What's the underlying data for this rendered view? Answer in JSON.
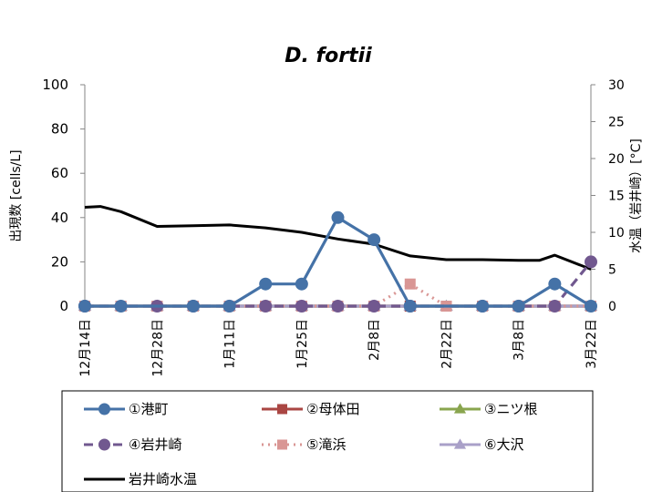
{
  "chart_data": {
    "type": "line",
    "title": "D. fortii",
    "ylabel": "出現数 [cells/L]",
    "y2label": "水温（岩井崎）[°C]",
    "ylim": [
      0,
      100
    ],
    "y2lim": [
      0,
      30
    ],
    "yticks": [
      "0",
      "20",
      "40",
      "60",
      "80",
      "100"
    ],
    "y2ticks": [
      "0",
      "5",
      "10",
      "15",
      "20",
      "25",
      "30"
    ],
    "x_labels": [
      "12月14日",
      "12月28日",
      "1月11日",
      "1月25日",
      "2月8日",
      "2月22日",
      "3月8日",
      "3月22日"
    ],
    "x_domain": [
      0,
      98
    ],
    "x_label_days": [
      0,
      14,
      28,
      42,
      56,
      70,
      84,
      98
    ],
    "legend_position": "bottom",
    "series": [
      {
        "name": "①港町",
        "color": "#4572A7",
        "dash": "solid",
        "marker": "circle",
        "axis": "left",
        "x": [
          0,
          7,
          21,
          28,
          35,
          42,
          49,
          56,
          63,
          77,
          84,
          91,
          98
        ],
        "values": [
          0,
          0,
          0,
          0,
          10,
          10,
          40,
          30,
          0,
          0,
          0,
          10,
          0
        ]
      },
      {
        "name": "②母体田",
        "color": "#AA4643",
        "dash": "solid",
        "marker": "square",
        "axis": "left",
        "x": [
          0,
          7,
          14,
          21,
          28,
          35,
          42,
          49,
          56,
          63,
          70,
          77,
          84,
          91,
          98
        ],
        "values": [
          0,
          0,
          0,
          0,
          0,
          0,
          0,
          0,
          0,
          0,
          0,
          0,
          0,
          0,
          0
        ]
      },
      {
        "name": "③ニツ根",
        "color": "#89A54E",
        "dash": "solid",
        "marker": "triangle",
        "axis": "left",
        "x": [
          0,
          7,
          14,
          21,
          28,
          35,
          42,
          49,
          56,
          63,
          70,
          77,
          84,
          91,
          98
        ],
        "values": [
          0,
          0,
          0,
          0,
          0,
          0,
          0,
          0,
          0,
          0,
          0,
          0,
          0,
          0,
          0
        ]
      },
      {
        "name": "④岩井崎",
        "color": "#71588F",
        "dash": "dashed",
        "marker": "circle",
        "axis": "left",
        "x": [
          0,
          14,
          21,
          28,
          35,
          42,
          49,
          56,
          63,
          77,
          84,
          91,
          98
        ],
        "values": [
          0,
          0,
          0,
          0,
          0,
          0,
          0,
          0,
          0,
          0,
          0,
          0,
          20
        ]
      },
      {
        "name": "⑤滝浜",
        "color": "#D99694",
        "dash": "dotted",
        "marker": "square",
        "axis": "left",
        "x": [
          0,
          7,
          14,
          21,
          28,
          35,
          42,
          49,
          56,
          63,
          70,
          77,
          84,
          91,
          98
        ],
        "values": [
          0,
          0,
          0,
          0,
          0,
          0,
          0,
          0,
          0,
          10,
          0,
          0,
          0,
          0,
          0
        ]
      },
      {
        "name": "⑥大沢",
        "color": "#A9A0C8",
        "dash": "solid",
        "marker": "triangle",
        "axis": "left",
        "x": [
          0,
          7,
          14,
          21,
          28,
          35,
          42,
          49,
          56,
          63,
          70,
          77,
          84,
          91,
          98
        ],
        "values": [
          0,
          0,
          0,
          0,
          0,
          0,
          0,
          0,
          0,
          0,
          0,
          0,
          0,
          0,
          0
        ]
      },
      {
        "name": "岩井崎水温",
        "color": "#000000",
        "dash": "solid",
        "marker": "none",
        "axis": "right",
        "x": [
          0,
          3,
          7,
          14,
          21,
          28,
          35,
          42,
          49,
          56,
          63,
          70,
          77,
          84,
          88,
          91,
          98
        ],
        "values": [
          13.4,
          13.5,
          12.8,
          10.8,
          10.9,
          11.0,
          10.6,
          10.0,
          9.1,
          8.4,
          6.8,
          6.3,
          6.3,
          6.2,
          6.2,
          6.9,
          5.0
        ]
      }
    ]
  }
}
